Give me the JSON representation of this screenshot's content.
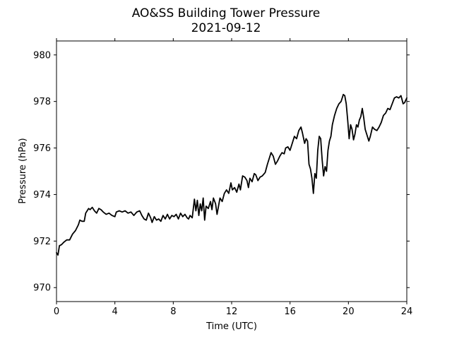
{
  "chart_data": {
    "type": "line",
    "title": "AO&SS Building Tower Pressure",
    "subtitle": "2021-09-12",
    "xlabel": "Time (UTC)",
    "ylabel": "Pressure (hPa)",
    "xlim": [
      0,
      24
    ],
    "ylim": [
      969.4,
      980.6
    ],
    "xticks": [
      0,
      4,
      8,
      12,
      16,
      20,
      24
    ],
    "yticks": [
      970,
      972,
      974,
      976,
      978,
      980
    ],
    "grid": false,
    "line_color": "#000000",
    "series": [
      {
        "points": [
          [
            0.0,
            971.5
          ],
          [
            0.1,
            971.4
          ],
          [
            0.2,
            971.8
          ],
          [
            0.35,
            971.85
          ],
          [
            0.5,
            971.95
          ],
          [
            0.7,
            972.05
          ],
          [
            0.9,
            972.05
          ],
          [
            1.1,
            972.3
          ],
          [
            1.3,
            972.45
          ],
          [
            1.5,
            972.7
          ],
          [
            1.6,
            972.9
          ],
          [
            1.75,
            972.85
          ],
          [
            1.9,
            972.85
          ],
          [
            2.0,
            973.2
          ],
          [
            2.1,
            973.3
          ],
          [
            2.2,
            973.4
          ],
          [
            2.3,
            973.35
          ],
          [
            2.45,
            973.45
          ],
          [
            2.6,
            973.3
          ],
          [
            2.75,
            973.2
          ],
          [
            2.9,
            973.4
          ],
          [
            3.05,
            973.35
          ],
          [
            3.2,
            973.25
          ],
          [
            3.4,
            973.15
          ],
          [
            3.6,
            973.2
          ],
          [
            3.8,
            973.1
          ],
          [
            4.0,
            973.05
          ],
          [
            4.1,
            973.25
          ],
          [
            4.3,
            973.3
          ],
          [
            4.5,
            973.25
          ],
          [
            4.7,
            973.3
          ],
          [
            4.9,
            973.2
          ],
          [
            5.1,
            973.25
          ],
          [
            5.3,
            973.1
          ],
          [
            5.5,
            973.25
          ],
          [
            5.7,
            973.3
          ],
          [
            5.85,
            973.1
          ],
          [
            6.0,
            972.95
          ],
          [
            6.15,
            972.9
          ],
          [
            6.3,
            973.2
          ],
          [
            6.45,
            973.0
          ],
          [
            6.55,
            972.8
          ],
          [
            6.7,
            973.05
          ],
          [
            6.85,
            972.9
          ],
          [
            7.0,
            972.95
          ],
          [
            7.15,
            972.85
          ],
          [
            7.3,
            973.1
          ],
          [
            7.45,
            972.95
          ],
          [
            7.6,
            973.15
          ],
          [
            7.75,
            972.95
          ],
          [
            7.9,
            973.1
          ],
          [
            8.05,
            973.05
          ],
          [
            8.2,
            973.15
          ],
          [
            8.35,
            972.95
          ],
          [
            8.5,
            973.2
          ],
          [
            8.65,
            973.05
          ],
          [
            8.8,
            973.15
          ],
          [
            8.95,
            973.0
          ],
          [
            9.05,
            972.95
          ],
          [
            9.15,
            973.1
          ],
          [
            9.3,
            973.0
          ],
          [
            9.45,
            973.8
          ],
          [
            9.55,
            973.3
          ],
          [
            9.65,
            973.75
          ],
          [
            9.75,
            973.1
          ],
          [
            9.85,
            973.6
          ],
          [
            9.95,
            973.3
          ],
          [
            10.05,
            973.85
          ],
          [
            10.15,
            972.9
          ],
          [
            10.25,
            973.5
          ],
          [
            10.4,
            973.4
          ],
          [
            10.55,
            973.7
          ],
          [
            10.65,
            973.35
          ],
          [
            10.75,
            973.85
          ],
          [
            10.9,
            973.6
          ],
          [
            11.0,
            973.15
          ],
          [
            11.1,
            973.5
          ],
          [
            11.2,
            973.85
          ],
          [
            11.35,
            973.7
          ],
          [
            11.5,
            974.05
          ],
          [
            11.65,
            974.2
          ],
          [
            11.8,
            974.05
          ],
          [
            11.95,
            974.5
          ],
          [
            12.05,
            974.2
          ],
          [
            12.2,
            974.3
          ],
          [
            12.35,
            974.1
          ],
          [
            12.5,
            974.45
          ],
          [
            12.6,
            974.2
          ],
          [
            12.75,
            974.8
          ],
          [
            12.9,
            974.75
          ],
          [
            13.05,
            974.6
          ],
          [
            13.15,
            974.3
          ],
          [
            13.25,
            974.7
          ],
          [
            13.4,
            974.55
          ],
          [
            13.55,
            974.9
          ],
          [
            13.65,
            974.85
          ],
          [
            13.8,
            974.6
          ],
          [
            13.95,
            974.75
          ],
          [
            14.1,
            974.8
          ],
          [
            14.3,
            974.95
          ],
          [
            14.45,
            975.3
          ],
          [
            14.6,
            975.6
          ],
          [
            14.7,
            975.8
          ],
          [
            14.85,
            975.65
          ],
          [
            15.0,
            975.3
          ],
          [
            15.15,
            975.45
          ],
          [
            15.3,
            975.65
          ],
          [
            15.45,
            975.8
          ],
          [
            15.6,
            975.75
          ],
          [
            15.7,
            976.0
          ],
          [
            15.85,
            976.05
          ],
          [
            16.0,
            975.9
          ],
          [
            16.15,
            976.2
          ],
          [
            16.3,
            976.5
          ],
          [
            16.45,
            976.4
          ],
          [
            16.6,
            976.75
          ],
          [
            16.75,
            976.9
          ],
          [
            16.85,
            976.65
          ],
          [
            17.0,
            976.2
          ],
          [
            17.1,
            976.4
          ],
          [
            17.2,
            976.3
          ],
          [
            17.3,
            975.3
          ],
          [
            17.4,
            975.1
          ],
          [
            17.5,
            974.7
          ],
          [
            17.6,
            974.05
          ],
          [
            17.7,
            974.9
          ],
          [
            17.8,
            974.7
          ],
          [
            17.9,
            975.9
          ],
          [
            18.0,
            976.5
          ],
          [
            18.1,
            976.4
          ],
          [
            18.2,
            975.5
          ],
          [
            18.3,
            974.8
          ],
          [
            18.4,
            975.2
          ],
          [
            18.5,
            975.0
          ],
          [
            18.6,
            975.9
          ],
          [
            18.7,
            976.3
          ],
          [
            18.8,
            976.5
          ],
          [
            18.9,
            977.0
          ],
          [
            19.05,
            977.4
          ],
          [
            19.2,
            977.7
          ],
          [
            19.35,
            977.9
          ],
          [
            19.5,
            978.0
          ],
          [
            19.65,
            978.3
          ],
          [
            19.75,
            978.25
          ],
          [
            19.85,
            977.9
          ],
          [
            19.95,
            977.2
          ],
          [
            20.05,
            976.4
          ],
          [
            20.15,
            977.0
          ],
          [
            20.25,
            976.8
          ],
          [
            20.35,
            976.35
          ],
          [
            20.45,
            976.6
          ],
          [
            20.55,
            977.0
          ],
          [
            20.65,
            976.9
          ],
          [
            20.75,
            977.2
          ],
          [
            20.85,
            977.35
          ],
          [
            20.95,
            977.7
          ],
          [
            21.05,
            977.3
          ],
          [
            21.15,
            976.8
          ],
          [
            21.25,
            976.6
          ],
          [
            21.4,
            976.3
          ],
          [
            21.5,
            976.5
          ],
          [
            21.65,
            976.9
          ],
          [
            21.8,
            976.8
          ],
          [
            21.95,
            976.75
          ],
          [
            22.1,
            976.9
          ],
          [
            22.25,
            977.1
          ],
          [
            22.4,
            977.4
          ],
          [
            22.55,
            977.5
          ],
          [
            22.7,
            977.7
          ],
          [
            22.85,
            977.65
          ],
          [
            23.0,
            977.9
          ],
          [
            23.15,
            978.15
          ],
          [
            23.3,
            978.2
          ],
          [
            23.45,
            978.15
          ],
          [
            23.6,
            978.25
          ],
          [
            23.75,
            977.9
          ],
          [
            23.85,
            977.95
          ],
          [
            24.0,
            978.15
          ]
        ]
      }
    ]
  }
}
